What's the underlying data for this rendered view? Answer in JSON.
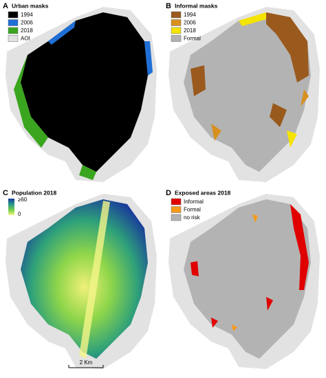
{
  "panels": [
    {
      "letter": "A",
      "title": "Urban masks",
      "legend": [
        {
          "label": "1994",
          "color": "#000000"
        },
        {
          "label": "2006",
          "color": "#1f6fd6"
        },
        {
          "label": "2018",
          "color": "#3aa51e"
        },
        {
          "label": "AOI",
          "color": "#e2e2e2"
        }
      ]
    },
    {
      "letter": "B",
      "title": "Informal masks",
      "legend": [
        {
          "label": "1994",
          "color": "#9a5a1e"
        },
        {
          "label": "2006",
          "color": "#d8901f"
        },
        {
          "label": "2018",
          "color": "#f5e400"
        },
        {
          "label": "Formal",
          "color": "#b3b3b3"
        }
      ]
    },
    {
      "letter": "C",
      "title": "Population 2018",
      "colorbar": {
        "max_label": "≥60",
        "min_label": "0"
      }
    },
    {
      "letter": "D",
      "title": "Exposed areas 2018",
      "legend": [
        {
          "label": "Informal",
          "color": "#e00000"
        },
        {
          "label": "Formal",
          "color": "#f59a1c"
        },
        {
          "label": "no risk",
          "color": "#b3b3b3"
        }
      ]
    }
  ],
  "scale_bar": "2 Km"
}
